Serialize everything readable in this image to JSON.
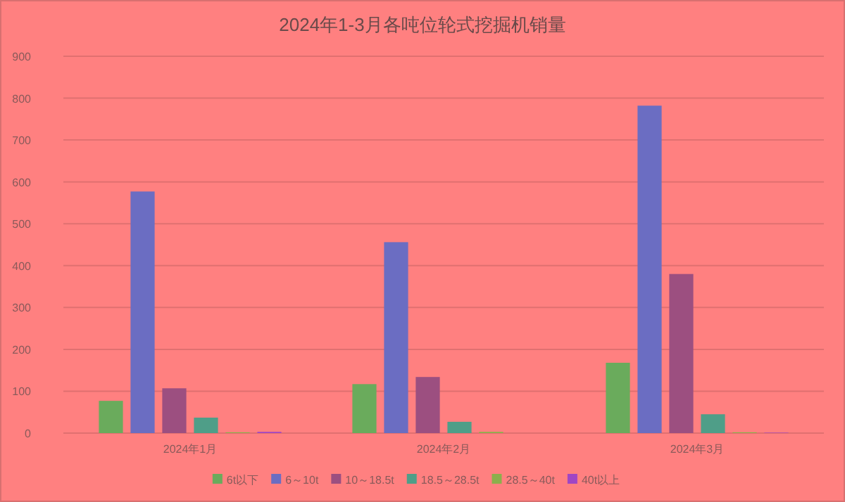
{
  "chart_data": {
    "type": "bar",
    "title": "2024年1-3月各吨位轮式挖掘机销量",
    "categories": [
      "2024年1月",
      "2024年2月",
      "2024年3月"
    ],
    "series": [
      {
        "name": "6t以下",
        "color": "#6aab5c",
        "values": [
          77,
          117,
          168
        ]
      },
      {
        "name": "6～10t",
        "color": "#6b6dc2",
        "values": [
          577,
          456,
          782
        ]
      },
      {
        "name": "10～18.5t",
        "color": "#9c4f80",
        "values": [
          107,
          134,
          380
        ]
      },
      {
        "name": "18.5～28.5t",
        "color": "#4f9e88",
        "values": [
          37,
          27,
          45
        ]
      },
      {
        "name": "28.5～40t",
        "color": "#8caf4c",
        "values": [
          2,
          3,
          2
        ]
      },
      {
        "name": "40t以上",
        "color": "#a046c4",
        "values": [
          3,
          0,
          1
        ]
      }
    ],
    "ylim": [
      0,
      900
    ],
    "yticks": [
      0,
      100,
      200,
      300,
      400,
      500,
      600,
      700,
      800,
      900
    ],
    "grid": "y",
    "legend": "bottom"
  }
}
